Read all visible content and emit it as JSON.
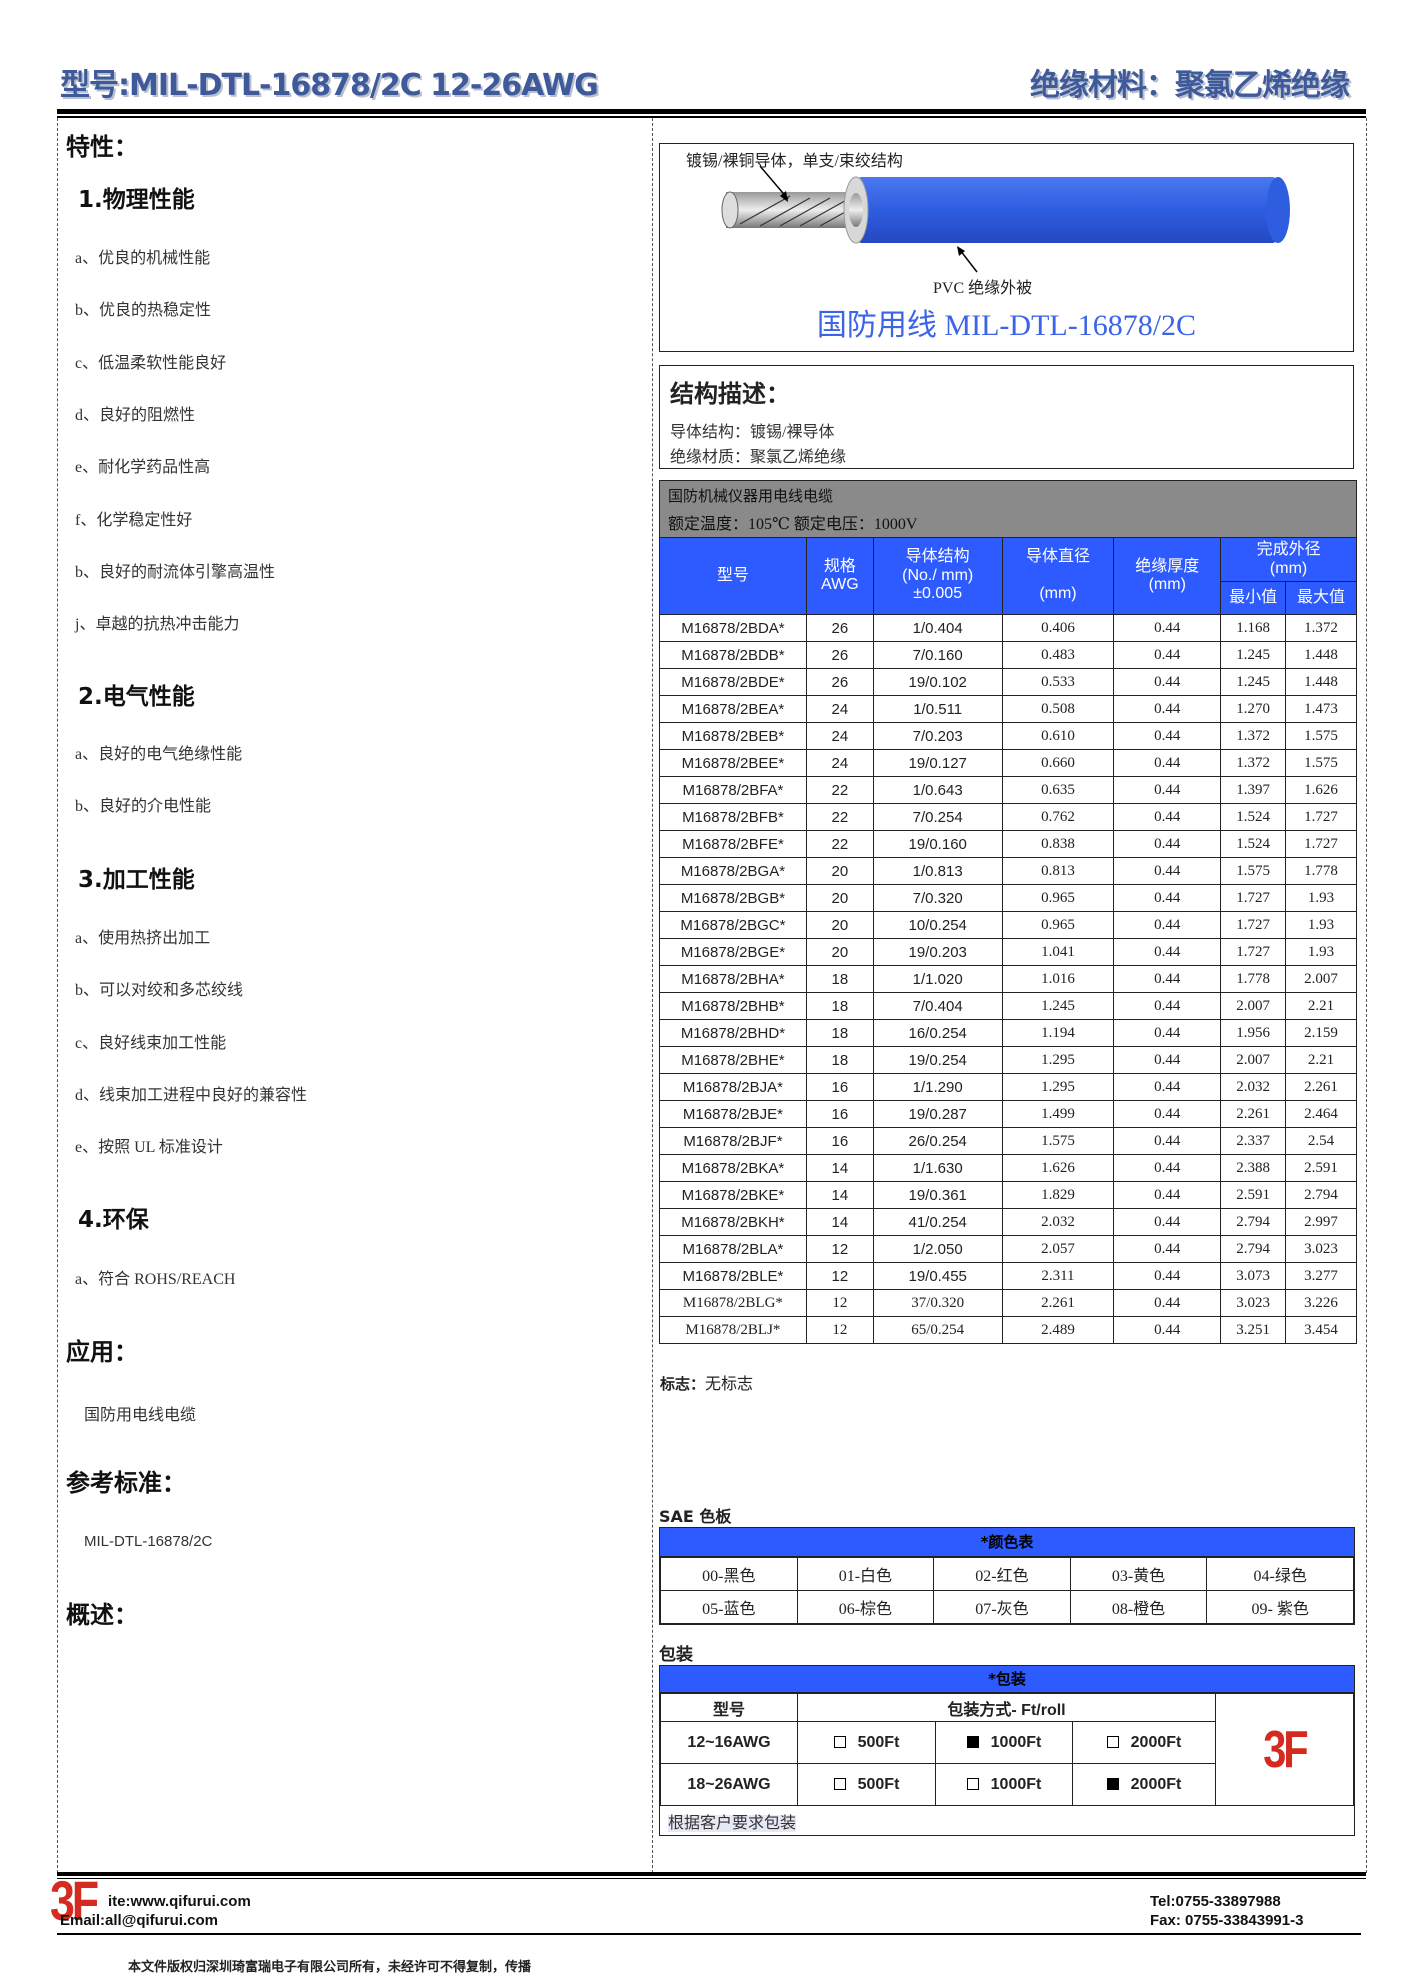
{
  "header": {
    "model_title": "型号:MIL-DTL-16878/2C 12-26AWG",
    "material_title": "绝缘材料：聚氯乙烯绝缘"
  },
  "left": {
    "features_heading": "特性：",
    "sections": [
      {
        "title": "1.物理性能",
        "items": [
          "a、优良的机械性能",
          "b、优良的热稳定性",
          "c、低温柔软性能良好",
          "d、良好的阻燃性",
          "e、耐化学药品性高",
          "f、化学稳定性好",
          "b、良好的耐流体引擎高温性",
          "j、卓越的抗热冲击能力"
        ]
      },
      {
        "title": "2.电气性能",
        "items": [
          "a、良好的电气绝缘性能",
          "b、良好的介电性能"
        ]
      },
      {
        "title": "3.加工性能",
        "items": [
          "a、使用热挤出加工",
          "b、可以对绞和多芯绞线",
          "c、良好线束加工性能",
          "d、线束加工进程中良好的兼容性",
          "e、按照 UL 标准设计"
        ]
      },
      {
        "title": "4.环保",
        "items": [
          "a、符合 ROHS/REACH"
        ]
      }
    ],
    "application_heading": "应用：",
    "application_text": "国防用电线电缆",
    "standard_heading": "参考标准：",
    "standard_text": "MIL-DTL-16878/2C",
    "overview_heading": "概述："
  },
  "figure": {
    "conductor_label": "镀锡/裸铜导体，单支/束绞结构",
    "jacket_label": "PVC  绝缘外被",
    "caption": "国防用线  MIL-DTL-16878/2C",
    "jacket_color": "#2f5de0"
  },
  "structure": {
    "heading": "结构描述：",
    "conductor": "导体结构：镀锡/裸导体",
    "insulation": "绝缘材质：聚氯乙烯绝缘"
  },
  "spec": {
    "title": "国防机械仪器用电线电缆",
    "rating": "额定温度：105℃  额定电压：1000V",
    "headers": {
      "model": "型号",
      "gauge": "规格",
      "gauge2": "AWG",
      "cond": "导体结构",
      "cond2": "(No./ mm)",
      "cond3": "±0.005",
      "dia": "导体直径",
      "dia2": "(mm)",
      "ins": "绝缘厚度",
      "ins2": "(mm)",
      "od": "完成外径",
      "od2": "(mm)",
      "min": "最小值",
      "max": "最大值"
    },
    "rows": [
      [
        "M16878/2BDA*",
        "26",
        "1/0.404",
        "0.406",
        "0.44",
        "1.168",
        "1.372"
      ],
      [
        "M16878/2BDB*",
        "26",
        "7/0.160",
        "0.483",
        "0.44",
        "1.245",
        "1.448"
      ],
      [
        "M16878/2BDE*",
        "26",
        "19/0.102",
        "0.533",
        "0.44",
        "1.245",
        "1.448"
      ],
      [
        "M16878/2BEA*",
        "24",
        "1/0.511",
        "0.508",
        "0.44",
        "1.270",
        "1.473"
      ],
      [
        "M16878/2BEB*",
        "24",
        "7/0.203",
        "0.610",
        "0.44",
        "1.372",
        "1.575"
      ],
      [
        "M16878/2BEE*",
        "24",
        "19/0.127",
        "0.660",
        "0.44",
        "1.372",
        "1.575"
      ],
      [
        "M16878/2BFA*",
        "22",
        "1/0.643",
        "0.635",
        "0.44",
        "1.397",
        "1.626"
      ],
      [
        "M16878/2BFB*",
        "22",
        "7/0.254",
        "0.762",
        "0.44",
        "1.524",
        "1.727"
      ],
      [
        "M16878/2BFE*",
        "22",
        "19/0.160",
        "0.838",
        "0.44",
        "1.524",
        "1.727"
      ],
      [
        "M16878/2BGA*",
        "20",
        "1/0.813",
        "0.813",
        "0.44",
        "1.575",
        "1.778"
      ],
      [
        "M16878/2BGB*",
        "20",
        "7/0.320",
        "0.965",
        "0.44",
        "1.727",
        "1.93"
      ],
      [
        "M16878/2BGC*",
        "20",
        "10/0.254",
        "0.965",
        "0.44",
        "1.727",
        "1.93"
      ],
      [
        "M16878/2BGE*",
        "20",
        "19/0.203",
        "1.041",
        "0.44",
        "1.727",
        "1.93"
      ],
      [
        "M16878/2BHA*",
        "18",
        "1/1.020",
        "1.016",
        "0.44",
        "1.778",
        "2.007"
      ],
      [
        "M16878/2BHB*",
        "18",
        "7/0.404",
        "1.245",
        "0.44",
        "2.007",
        "2.21"
      ],
      [
        "M16878/2BHD*",
        "18",
        "16/0.254",
        "1.194",
        "0.44",
        "1.956",
        "2.159"
      ],
      [
        "M16878/2BHE*",
        "18",
        "19/0.254",
        "1.295",
        "0.44",
        "2.007",
        "2.21"
      ],
      [
        "M16878/2BJA*",
        "16",
        "1/1.290",
        "1.295",
        "0.44",
        "2.032",
        "2.261"
      ],
      [
        "M16878/2BJE*",
        "16",
        "19/0.287",
        "1.499",
        "0.44",
        "2.261",
        "2.464"
      ],
      [
        "M16878/2BJF*",
        "16",
        "26/0.254",
        "1.575",
        "0.44",
        "2.337",
        "2.54"
      ],
      [
        "M16878/2BKA*",
        "14",
        "1/1.630",
        "1.626",
        "0.44",
        "2.388",
        "2.591"
      ],
      [
        "M16878/2BKE*",
        "14",
        "19/0.361",
        "1.829",
        "0.44",
        "2.591",
        "2.794"
      ],
      [
        "M16878/2BKH*",
        "14",
        "41/0.254",
        "2.032",
        "0.44",
        "2.794",
        "2.997"
      ],
      [
        "M16878/2BLA*",
        "12",
        "1/2.050",
        "2.057",
        "0.44",
        "2.794",
        "3.023"
      ],
      [
        "M16878/2BLE*",
        "12",
        "19/0.455",
        "2.311",
        "0.44",
        "3.073",
        "3.277"
      ],
      [
        "M16878/2BLG*",
        "12",
        "37/0.320",
        "2.261",
        "0.44",
        "3.023",
        "3.226"
      ],
      [
        "M16878/2BLJ*",
        "12",
        "65/0.254",
        "2.489",
        "0.44",
        "3.251",
        "3.454"
      ]
    ]
  },
  "marking": {
    "label": "标志：",
    "value": "无标志"
  },
  "colors": {
    "heading": "SAE 色板",
    "table_title": "*颜色表",
    "items": [
      "00-黑色",
      "01-白色",
      "02-红色",
      "03-黄色",
      "04-绿色",
      "05-蓝色",
      "06-棕色",
      "07-灰色",
      "08-橙色",
      "09-  紫色"
    ]
  },
  "packaging": {
    "heading": "包装",
    "table_title": "*包装",
    "col_model": "型号",
    "col_method": "包装方式- Ft/roll",
    "rows": [
      {
        "model": "12~16AWG",
        "options": [
          {
            "label": "500Ft",
            "checked": false
          },
          {
            "label": "1000Ft",
            "checked": true
          },
          {
            "label": "2000Ft",
            "checked": false
          }
        ]
      },
      {
        "model": "18~26AWG",
        "options": [
          {
            "label": "500Ft",
            "checked": false
          },
          {
            "label": "1000Ft",
            "checked": false
          },
          {
            "label": "2000Ft",
            "checked": true
          }
        ]
      }
    ],
    "note": "根据客户要求包装",
    "logo": "3F"
  },
  "footer": {
    "logo": "3F",
    "site": "ite:www.qifurui.com",
    "email": "Email:all@qifurui.com",
    "tel": "Tel:0755-33897988",
    "fax": "Fax: 0755-33843991-3",
    "copyright": "本文件版权归深圳琦富瑞电子有限公司所有，未经许可不得复制，传播"
  },
  "accent_color": "#2e5bff",
  "logo_color": "#d42a20"
}
